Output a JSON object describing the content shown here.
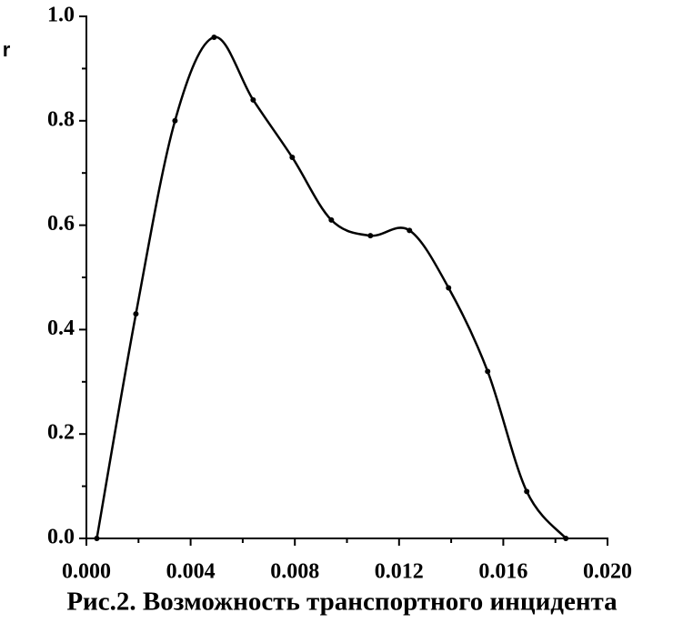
{
  "chart_data": {
    "type": "line",
    "ylabel": "r",
    "caption": "Рис.2. Возможность транспортного инцидента",
    "x": [
      0.0004,
      0.0019,
      0.0034,
      0.0049,
      0.0064,
      0.0079,
      0.0094,
      0.0109,
      0.0124,
      0.0139,
      0.0154,
      0.0169,
      0.0184
    ],
    "series": [
      {
        "color": "#000000",
        "values": [
          0,
          0.43,
          0.8,
          0.96,
          0.84,
          0.73,
          0.61,
          0.58,
          0.59,
          0.48,
          0.32,
          0.09,
          0
        ]
      }
    ],
    "smooth": true,
    "markers": true,
    "xlim": [
      0,
      0.02
    ],
    "xticks": [
      {
        "value": 0,
        "label": "0.000"
      },
      {
        "value": 0.004,
        "label": "0.004"
      },
      {
        "value": 0.008,
        "label": "0.008"
      },
      {
        "value": 0.012,
        "label": "0.012"
      },
      {
        "value": 0.016,
        "label": "0.016"
      },
      {
        "value": 0.02,
        "label": "0.020"
      }
    ],
    "xminorticks": [
      0.002,
      0.006,
      0.01,
      0.014,
      0.018
    ],
    "ylim": [
      0,
      1
    ],
    "yticks": [
      {
        "value": 0,
        "label": "0.0"
      },
      {
        "value": 0.2,
        "label": "0.2"
      },
      {
        "value": 0.4,
        "label": "0.4"
      },
      {
        "value": 0.6,
        "label": "0.6"
      },
      {
        "value": 0.8,
        "label": "0.8"
      },
      {
        "value": 1,
        "label": "1.0"
      }
    ],
    "yminorticks": [
      0.1,
      0.3,
      0.5,
      0.7,
      0.9
    ],
    "grid": false
  }
}
